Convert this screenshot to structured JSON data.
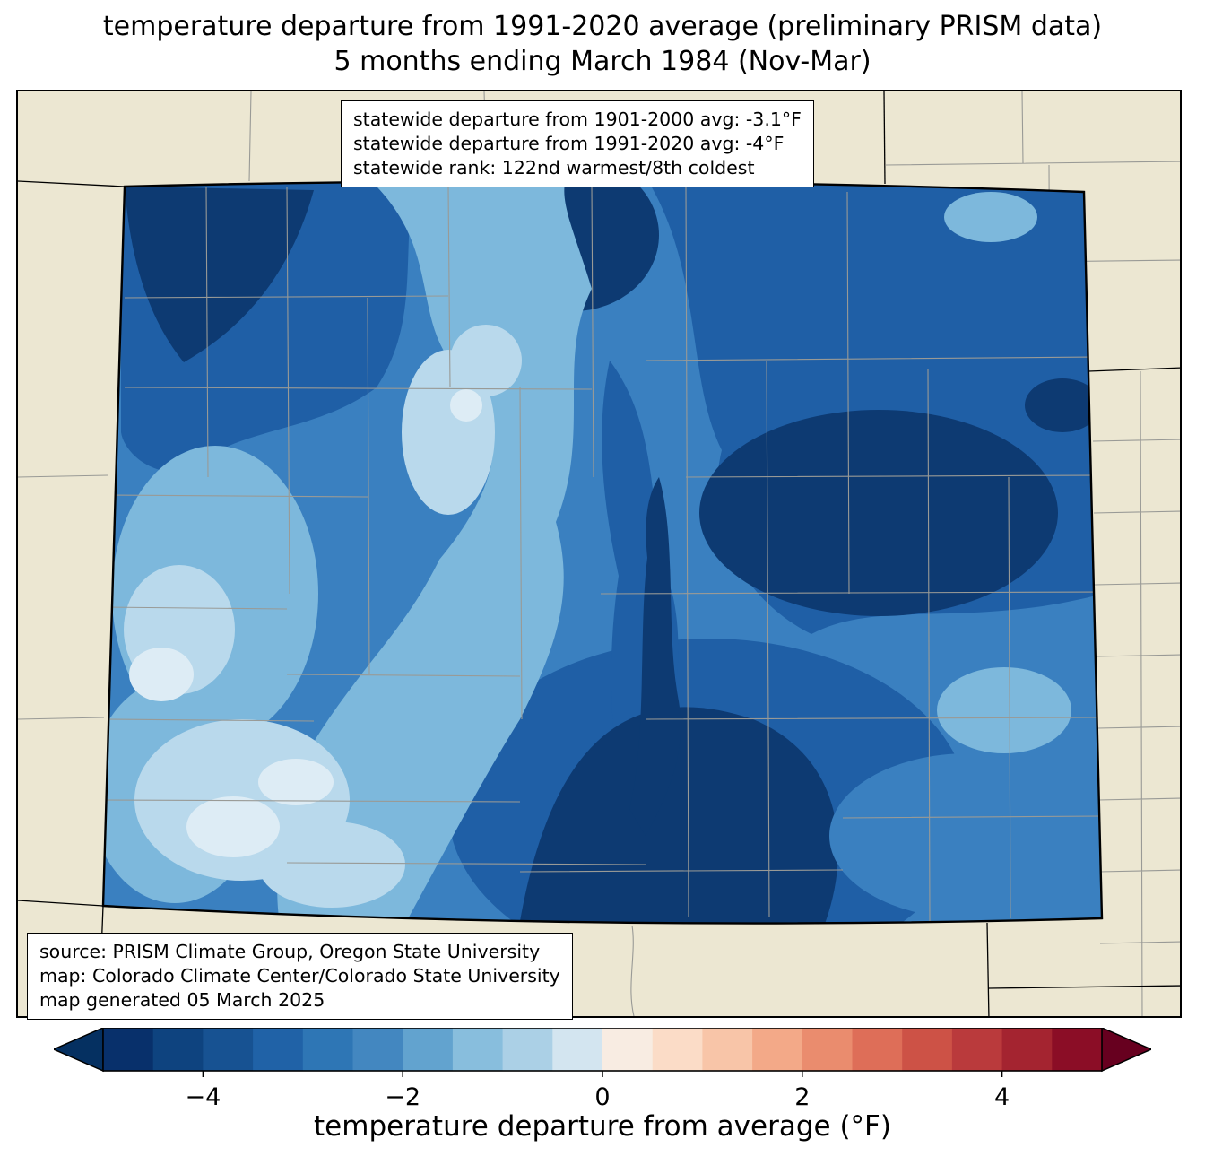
{
  "title": {
    "line1": "temperature departure from 1991-2020 average (preliminary PRISM data)",
    "line2": "5 months ending March 1984 (Nov-Mar)"
  },
  "stats_box": {
    "line1": "statewide departure from 1901-2000 avg: -3.1°F",
    "line2": "statewide departure from 1991-2020 avg: -4°F",
    "line3": "statewide rank: 122nd warmest/8th coldest"
  },
  "source_box": {
    "line1": "source: PRISM Climate Group, Oregon State University",
    "line2": "map: Colorado Climate Center/Colorado State University",
    "line3": "map generated 05 March 2025"
  },
  "colorbar": {
    "label": "temperature departure from average (°F)",
    "range_min": -5,
    "range_max": 5,
    "ticks": [
      {
        "label": "−4",
        "value": -4
      },
      {
        "label": "−2",
        "value": -2
      },
      {
        "label": "0",
        "value": 0
      },
      {
        "label": "2",
        "value": 2
      },
      {
        "label": "4",
        "value": 4
      }
    ],
    "segments": [
      "#08306b",
      "#0e437f",
      "#175292",
      "#2062a7",
      "#2e76b5",
      "#4387c0",
      "#62a3cf",
      "#88bedd",
      "#abd0e6",
      "#d3e5f0",
      "#f8ece2",
      "#fbdcc7",
      "#f8c5a8",
      "#f3a988",
      "#ea8c6e",
      "#de6e58",
      "#cd5246",
      "#ba3a3c",
      "#a42430",
      "#8b0d26"
    ],
    "left_arrow_color": "#053061",
    "right_arrow_color": "#67001f"
  },
  "map": {
    "region": "Colorado",
    "land_background": "#ece7d2",
    "county_line_color": "#999a96",
    "state_line_color": "#000000",
    "departure_palette": {
      "minus5_or_colder": "#0d3a72",
      "minus4": "#1f5fa6",
      "minus3": "#3a80c0",
      "minus2": "#7db8dc",
      "minus1": "#b9d9ec",
      "near_zero": "#ddecf5"
    }
  }
}
